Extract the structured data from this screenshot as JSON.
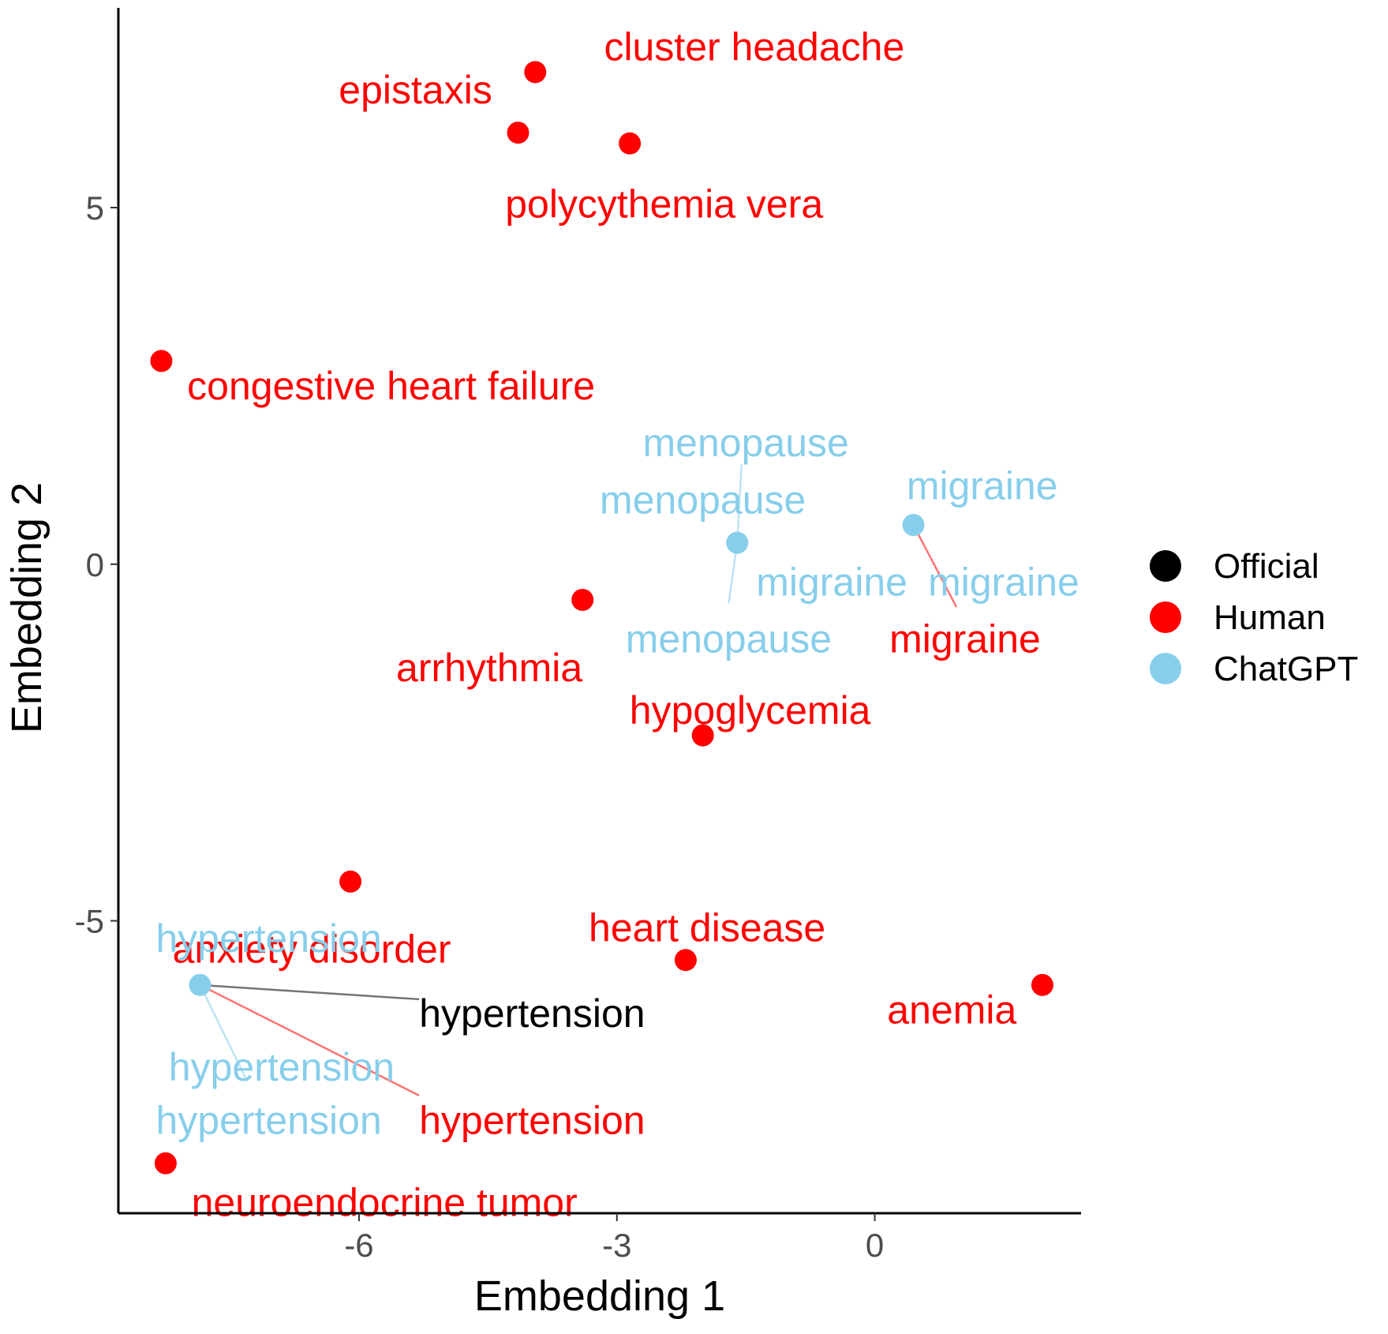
{
  "chart_data": {
    "type": "scatter",
    "xlabel": "Embedding 1",
    "ylabel": "Embedding 2",
    "xlim": [
      -8.8,
      2.4
    ],
    "ylim": [
      -9.1,
      7.8
    ],
    "xticks": [
      -6,
      -3,
      0
    ],
    "yticks": [
      -5,
      0,
      5
    ],
    "grid": false,
    "legend_position": "right",
    "colors": {
      "Official": "#000000",
      "Human": "#ff0000",
      "ChatGPT": "#87ceeb"
    },
    "legend": [
      "Official",
      "Human",
      "ChatGPT"
    ],
    "points": [
      {
        "x": -3.95,
        "y": 6.9,
        "group": "Human",
        "label": "cluster headache",
        "lx": 0.8,
        "ly": 0.35,
        "anchor": "start"
      },
      {
        "x": -4.15,
        "y": 6.05,
        "group": "Human",
        "label": "epistaxis",
        "lx": -0.3,
        "ly": 0.6,
        "anchor": "end"
      },
      {
        "x": -2.85,
        "y": 5.9,
        "group": "Human",
        "label": "polycythemia vera",
        "lx": 0.4,
        "ly": -0.85,
        "anchor": "middle"
      },
      {
        "x": -8.3,
        "y": 2.85,
        "group": "Human",
        "label": "congestive heart failure",
        "lx": 0.3,
        "ly": -0.35,
        "anchor": "start"
      },
      {
        "x": -3.4,
        "y": -0.5,
        "group": "Human",
        "label": "arrhythmia",
        "lx": 0.0,
        "ly": -0.95,
        "anchor": "end"
      },
      {
        "x": -2.0,
        "y": -2.4,
        "group": "Human",
        "label": "hypoglycemia",
        "lx": 0.55,
        "ly": 0.35,
        "anchor": "middle"
      },
      {
        "x": -6.1,
        "y": -4.45,
        "group": "Human",
        "label": "anxiety disorder",
        "lx": -0.45,
        "ly": -0.95,
        "anchor": "middle"
      },
      {
        "x": -2.2,
        "y": -5.55,
        "group": "Human",
        "label": "heart disease",
        "lx": 0.25,
        "ly": 0.45,
        "anchor": "middle"
      },
      {
        "x": 1.95,
        "y": -5.9,
        "group": "Human",
        "label": "anemia",
        "lx": -0.3,
        "ly": -0.35,
        "anchor": "end"
      },
      {
        "x": -8.25,
        "y": -8.4,
        "group": "Human",
        "label": "neuroendocrine tumor",
        "lx": 0.3,
        "ly": -0.55,
        "anchor": "start"
      },
      {
        "x": -1.6,
        "y": 0.3,
        "group": "ChatGPT",
        "label": "menopause",
        "lx": 0.05,
        "ly": 1.4,
        "anchor": "middle",
        "hidden_label": true
      },
      {
        "x": 0.45,
        "y": 0.55,
        "group": "ChatGPT",
        "label": "migraine",
        "lx": 0.8,
        "ly": 0.55,
        "anchor": "middle",
        "hidden_label": true
      },
      {
        "x": -7.85,
        "y": -5.9,
        "group": "ChatGPT",
        "label": "hypertension",
        "lx": -0.35,
        "ly": 0.6,
        "anchor": "middle",
        "hidden_label": true
      }
    ],
    "labels": [
      {
        "text": "menopause",
        "group": "ChatGPT",
        "x": -1.5,
        "y": 1.7,
        "anchor": "middle",
        "line_from": [
          -1.6,
          0.3
        ],
        "line_to": [
          -1.55,
          1.4
        ]
      },
      {
        "text": "menopause",
        "group": "ChatGPT",
        "x": -2.0,
        "y": 0.9,
        "anchor": "middle"
      },
      {
        "text": "migraine",
        "group": "ChatGPT",
        "x": 1.25,
        "y": 1.1,
        "anchor": "middle"
      },
      {
        "text": "migraine",
        "group": "ChatGPT",
        "x": -0.5,
        "y": -0.25,
        "anchor": "middle"
      },
      {
        "text": "migraine",
        "group": "ChatGPT",
        "x": 1.5,
        "y": -0.25,
        "anchor": "middle"
      },
      {
        "text": "migraine",
        "group": "Human",
        "x": 1.05,
        "y": -1.05,
        "anchor": "middle",
        "line_from": [
          0.45,
          0.55
        ],
        "line_to": [
          0.95,
          -0.6
        ]
      },
      {
        "text": "menopause",
        "group": "ChatGPT",
        "x": -1.7,
        "y": -1.05,
        "anchor": "middle",
        "line_from": [
          -1.6,
          0.3
        ],
        "line_to": [
          -1.7,
          -0.55
        ]
      },
      {
        "text": "hypertension",
        "group": "ChatGPT",
        "x": -7.05,
        "y": -5.25,
        "anchor": "middle"
      },
      {
        "text": "hypertension",
        "group": "Official",
        "x": -5.3,
        "y": -6.3,
        "anchor": "start",
        "line_from": [
          -7.85,
          -5.9
        ],
        "line_to": [
          -5.3,
          -6.1
        ]
      },
      {
        "text": "hypertension",
        "group": "ChatGPT",
        "x": -6.9,
        "y": -7.05,
        "anchor": "middle"
      },
      {
        "text": "hypertension",
        "group": "ChatGPT",
        "x": -7.05,
        "y": -7.8,
        "anchor": "middle",
        "line_from": [
          -7.85,
          -5.9
        ],
        "line_to": [
          -7.3,
          -7.25
        ]
      },
      {
        "text": "hypertension",
        "group": "Human",
        "x": -5.3,
        "y": -7.8,
        "anchor": "start",
        "line_from": [
          -7.85,
          -5.9
        ],
        "line_to": [
          -5.3,
          -7.45
        ]
      }
    ]
  }
}
